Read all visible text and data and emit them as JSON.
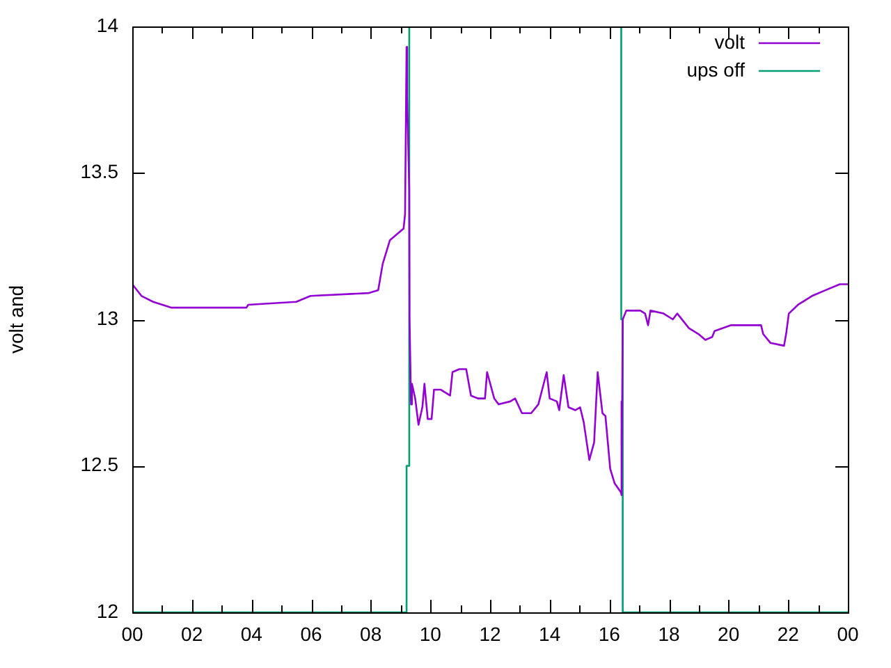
{
  "chart_data": {
    "type": "line",
    "ylabel": "volt and",
    "legend": "top right",
    "line_style": "solid",
    "marker": "none",
    "xlim": [
      0,
      24
    ],
    "xticks": [
      {
        "value": 0,
        "label": "00"
      },
      {
        "value": 1,
        "label": null
      },
      {
        "value": 2,
        "label": "02"
      },
      {
        "value": 3,
        "label": null
      },
      {
        "value": 4,
        "label": "04"
      },
      {
        "value": 5,
        "label": null
      },
      {
        "value": 6,
        "label": "06"
      },
      {
        "value": 7,
        "label": null
      },
      {
        "value": 8,
        "label": "08"
      },
      {
        "value": 9,
        "label": null
      },
      {
        "value": 10,
        "label": "10"
      },
      {
        "value": 11,
        "label": null
      },
      {
        "value": 12,
        "label": "12"
      },
      {
        "value": 13,
        "label": null
      },
      {
        "value": 14,
        "label": "14"
      },
      {
        "value": 15,
        "label": null
      },
      {
        "value": 16,
        "label": "16"
      },
      {
        "value": 17,
        "label": null
      },
      {
        "value": 18,
        "label": "18"
      },
      {
        "value": 19,
        "label": null
      },
      {
        "value": 20,
        "label": "20"
      },
      {
        "value": 21,
        "label": null
      },
      {
        "value": 22,
        "label": "22"
      },
      {
        "value": 23,
        "label": null
      },
      {
        "value": 24,
        "label": "00"
      }
    ],
    "ylim": [
      12,
      14
    ],
    "yticks": [
      12,
      12.5,
      13,
      13.5,
      14
    ],
    "series": [
      {
        "name": "volt",
        "color": "#9400d3",
        "x": [
          0,
          0.31,
          0.7,
          1.32,
          3.83,
          3.89,
          5.5,
          5.98,
          7.94,
          8.25,
          8.4,
          8.64,
          9.1,
          9.15,
          9.2,
          9.22,
          9.29,
          9.3,
          9.35,
          9.38,
          9.49,
          9.6,
          9.73,
          9.8,
          9.91,
          10.04,
          10.12,
          10.35,
          10.66,
          10.74,
          10.97,
          11.2,
          11.36,
          11.59,
          11.83,
          11.9,
          12.14,
          12.29,
          12.68,
          12.84,
          13.07,
          13.38,
          13.62,
          13.9,
          14.0,
          14.24,
          14.32,
          14.47,
          14.63,
          14.86,
          15.02,
          15.14,
          15.33,
          15.49,
          15.61,
          15.77,
          15.87,
          16.03,
          16.18,
          16.39,
          16.4,
          16.42,
          16.45,
          16.57,
          17.04,
          17.2,
          17.3,
          17.38,
          17.82,
          18.13,
          18.28,
          18.67,
          18.99,
          19.22,
          19.45,
          19.53,
          20.07,
          21.09,
          21.16,
          21.4,
          21.86,
          21.93,
          22.02,
          22.33,
          22.8,
          23.26,
          23.73,
          24
        ],
        "values": [
          13.12,
          13.08,
          13.06,
          13.04,
          13.04,
          13.05,
          13.06,
          13.08,
          13.09,
          13.1,
          13.19,
          13.27,
          13.31,
          13.36,
          13.93,
          13.76,
          13.44,
          13.0,
          12.71,
          12.78,
          12.73,
          12.64,
          12.7,
          12.78,
          12.66,
          12.66,
          12.76,
          12.76,
          12.74,
          12.82,
          12.83,
          12.83,
          12.74,
          12.73,
          12.73,
          12.82,
          12.73,
          12.71,
          12.72,
          12.73,
          12.68,
          12.68,
          12.71,
          12.82,
          12.73,
          12.72,
          12.69,
          12.81,
          12.7,
          12.69,
          12.7,
          12.65,
          12.52,
          12.58,
          12.82,
          12.68,
          12.67,
          12.49,
          12.44,
          12.41,
          12.72,
          12.4,
          13.0,
          13.03,
          13.03,
          13.02,
          12.98,
          13.03,
          13.02,
          13.0,
          13.02,
          12.97,
          12.95,
          12.93,
          12.94,
          12.96,
          12.98,
          12.98,
          12.95,
          12.92,
          12.91,
          12.95,
          13.02,
          13.05,
          13.08,
          13.1,
          13.12,
          13.12
        ]
      },
      {
        "name": "ups off",
        "color": "#009e73",
        "x": [
          0,
          9.2,
          9.2,
          9.29,
          9.29,
          16.4,
          16.4,
          16.45,
          16.45,
          24
        ],
        "values": [
          12,
          12,
          12.5,
          12.5,
          14,
          14,
          13.0,
          13.0,
          12,
          12
        ]
      }
    ]
  }
}
